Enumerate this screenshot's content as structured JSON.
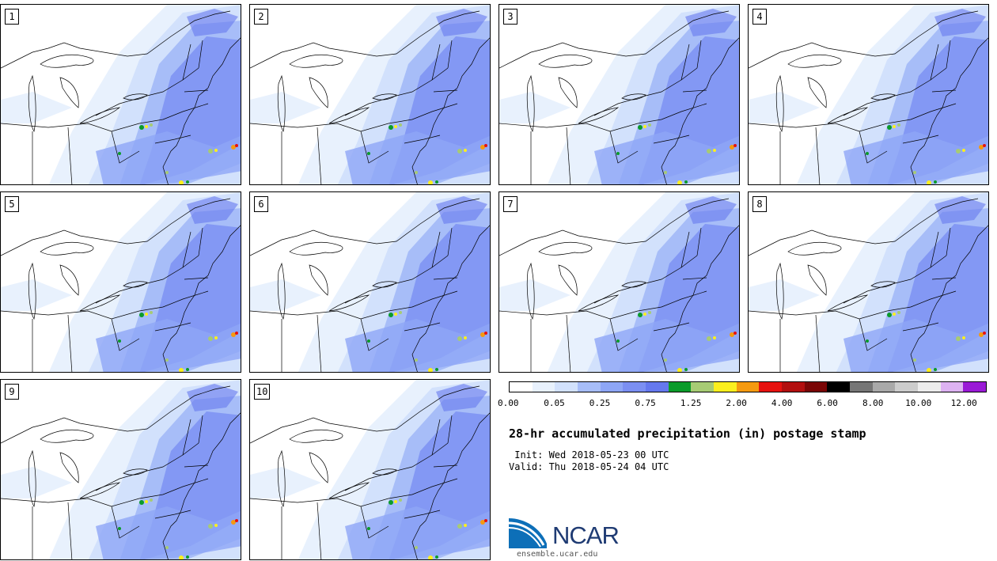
{
  "panels": [
    {
      "label": "1"
    },
    {
      "label": "2"
    },
    {
      "label": "3"
    },
    {
      "label": "4"
    },
    {
      "label": "5"
    },
    {
      "label": "6"
    },
    {
      "label": "7"
    },
    {
      "label": "8"
    },
    {
      "label": "9"
    },
    {
      "label": "10"
    }
  ],
  "colorbar": {
    "colors": [
      "#ffffff",
      "#e8f1fd",
      "#d2e1fc",
      "#a7bdf8",
      "#8ea6f6",
      "#7b8ff2",
      "#6578ee",
      "#0a9b2a",
      "#a7cb74",
      "#fbef1e",
      "#f59a10",
      "#e6120f",
      "#b20f0f",
      "#7a0606",
      "#000000",
      "#767676",
      "#a9a9a9",
      "#cccccc",
      "#ececec",
      "#ddb2f2",
      "#9a1ad6"
    ],
    "tick_labels": [
      "0.00",
      "0.05",
      "0.25",
      "0.75",
      "1.25",
      "2.00",
      "4.00",
      "6.00",
      "8.00",
      "10.00",
      "12.00"
    ]
  },
  "legend_title": "28-hr accumulated precipitation (in) postage stamp",
  "init_text": " Init: Wed 2018-05-23 00 UTC",
  "valid_text": "Valid: Thu 2018-05-24 04 UTC",
  "logo": {
    "text": "NCAR",
    "url": "ensemble.ucar.edu"
  }
}
